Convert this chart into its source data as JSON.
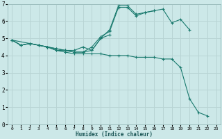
{
  "bg_color": "#cce8e8",
  "grid_color": "#b8d4d4",
  "line_color": "#1a7a6e",
  "xlabel": "Humidex (Indice chaleur)",
  "xlim": [
    -0.5,
    23.5
  ],
  "ylim": [
    0,
    7
  ],
  "xticks": [
    0,
    1,
    2,
    3,
    4,
    5,
    6,
    7,
    8,
    9,
    10,
    11,
    12,
    13,
    14,
    15,
    16,
    17,
    18,
    19,
    20,
    21,
    22,
    23
  ],
  "yticks": [
    0,
    1,
    2,
    3,
    4,
    5,
    6,
    7
  ],
  "series": [
    {
      "x": [
        0,
        1,
        2,
        3,
        4,
        5,
        6,
        7,
        8,
        9,
        10,
        11,
        12,
        13,
        14,
        15,
        16,
        17,
        18,
        19,
        20
      ],
      "y": [
        4.9,
        4.6,
        4.7,
        4.6,
        4.5,
        4.4,
        4.3,
        4.2,
        4.2,
        4.3,
        5.0,
        5.5,
        6.9,
        6.9,
        6.4,
        6.5,
        6.6,
        6.7,
        5.9,
        6.1,
        5.5
      ]
    },
    {
      "x": [
        0,
        1,
        2,
        3,
        4,
        5,
        6,
        7,
        8,
        9,
        10,
        11,
        12,
        13,
        14,
        15,
        16
      ],
      "y": [
        4.9,
        4.6,
        4.7,
        4.6,
        4.5,
        4.4,
        4.3,
        4.2,
        4.2,
        4.5,
        5.1,
        5.4,
        6.8,
        6.8,
        6.3,
        6.5,
        6.6
      ]
    },
    {
      "x": [
        0,
        2,
        3,
        4,
        5,
        6,
        7,
        8,
        9,
        10,
        11
      ],
      "y": [
        4.9,
        4.7,
        4.6,
        4.5,
        4.3,
        4.3,
        4.3,
        4.5,
        4.3,
        5.0,
        5.2
      ]
    },
    {
      "x": [
        0,
        1,
        2,
        3,
        4,
        5,
        6,
        7,
        8,
        9,
        10,
        11,
        12,
        13,
        14,
        15,
        16,
        17,
        18,
        19,
        20,
        21,
        22
      ],
      "y": [
        4.9,
        4.6,
        4.7,
        4.6,
        4.5,
        4.3,
        4.2,
        4.1,
        4.1,
        4.1,
        4.1,
        4.0,
        4.0,
        4.0,
        3.9,
        3.9,
        3.9,
        3.8,
        3.8,
        3.3,
        1.5,
        0.7,
        0.5
      ]
    }
  ]
}
